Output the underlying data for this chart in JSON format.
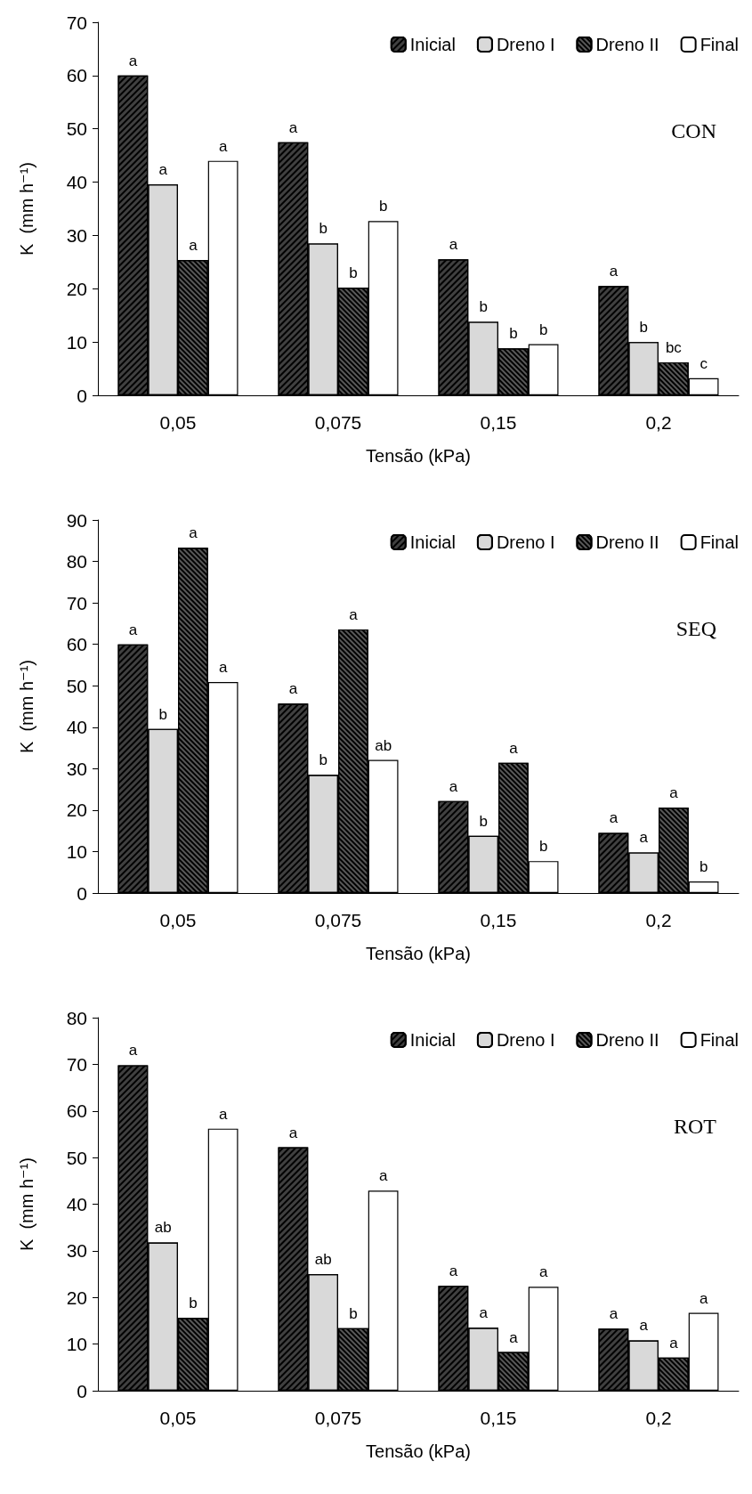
{
  "chart_data": [
    {
      "type": "bar",
      "categories": [
        "0,05",
        "0,075",
        "0,15",
        "0,2"
      ],
      "xlabel": "Tensão (kPa)",
      "ylabel": "K  (mm h⁻¹)",
      "ylim": [
        0,
        70
      ],
      "yticks": [
        0,
        10,
        20,
        30,
        40,
        50,
        60,
        70
      ],
      "grid": false,
      "legend": "top right",
      "annotations": [
        "CON"
      ],
      "series": [
        {
          "name": "Inicial",
          "color": "#404040",
          "values": [
            60,
            47.5,
            25.5,
            20.5
          ],
          "value_labels": [
            "a",
            "a",
            "a",
            "a"
          ]
        },
        {
          "name": "Dreno I",
          "color": "#d9d9d9",
          "values": [
            39.6,
            28.5,
            13.8,
            10
          ],
          "value_labels": [
            "a",
            "b",
            "b",
            "b"
          ]
        },
        {
          "name": "Dreno II",
          "color": "#595959",
          "values": [
            25.4,
            20.2,
            8.8,
            6.2
          ],
          "value_labels": [
            "a",
            "b",
            "b",
            "bc"
          ]
        },
        {
          "name": "Final",
          "color": "#ffffff",
          "values": [
            44,
            32.7,
            9.6,
            3.2
          ],
          "value_labels": [
            "a",
            "b",
            "b",
            "c"
          ]
        }
      ]
    },
    {
      "type": "bar",
      "categories": [
        "0,05",
        "0,075",
        "0,15",
        "0,2"
      ],
      "xlabel": "Tensão (kPa)",
      "ylabel": "K  (mm h⁻¹)",
      "ylim": [
        0,
        90
      ],
      "yticks": [
        0,
        10,
        20,
        30,
        40,
        50,
        60,
        70,
        80,
        90
      ],
      "grid": false,
      "legend": "top right",
      "annotations": [
        "SEQ"
      ],
      "series": [
        {
          "name": "Inicial",
          "color": "#404040",
          "values": [
            60,
            45.7,
            22.2,
            14.5
          ],
          "value_labels": [
            "a",
            "a",
            "a",
            "a"
          ]
        },
        {
          "name": "Dreno I",
          "color": "#d9d9d9",
          "values": [
            39.6,
            28.5,
            13.8,
            9.8
          ],
          "value_labels": [
            "b",
            "b",
            "b",
            "a"
          ]
        },
        {
          "name": "Dreno II",
          "color": "#595959",
          "values": [
            83.3,
            63.6,
            31.4,
            20.6
          ],
          "value_labels": [
            "a",
            "a",
            "a",
            "a"
          ]
        },
        {
          "name": "Final",
          "color": "#ffffff",
          "values": [
            50.9,
            32.1,
            7.7,
            2.8
          ],
          "value_labels": [
            "a",
            "ab",
            "b",
            "b"
          ]
        }
      ]
    },
    {
      "type": "bar",
      "categories": [
        "0,05",
        "0,075",
        "0,15",
        "0,2"
      ],
      "xlabel": "Tensão (kPa)",
      "ylabel": "K  (mm h⁻¹)",
      "ylim": [
        0,
        80
      ],
      "yticks": [
        0,
        10,
        20,
        30,
        40,
        50,
        60,
        70,
        80
      ],
      "grid": false,
      "legend": "top right",
      "annotations": [
        "ROT"
      ],
      "series": [
        {
          "name": "Inicial",
          "color": "#404040",
          "values": [
            69.8,
            52.2,
            22.5,
            13.3
          ],
          "value_labels": [
            "a",
            "a",
            "a",
            "a"
          ]
        },
        {
          "name": "Dreno I",
          "color": "#d9d9d9",
          "values": [
            31.8,
            25,
            13.5,
            10.8
          ],
          "value_labels": [
            "ab",
            "ab",
            "a",
            "a"
          ]
        },
        {
          "name": "Dreno II",
          "color": "#595959",
          "values": [
            15.6,
            13.4,
            8.3,
            7.1
          ],
          "value_labels": [
            "b",
            "b",
            "a",
            "a"
          ]
        },
        {
          "name": "Final",
          "color": "#ffffff",
          "values": [
            56.2,
            42.9,
            22.3,
            16.7
          ],
          "value_labels": [
            "a",
            "a",
            "a",
            "a"
          ]
        }
      ]
    }
  ]
}
